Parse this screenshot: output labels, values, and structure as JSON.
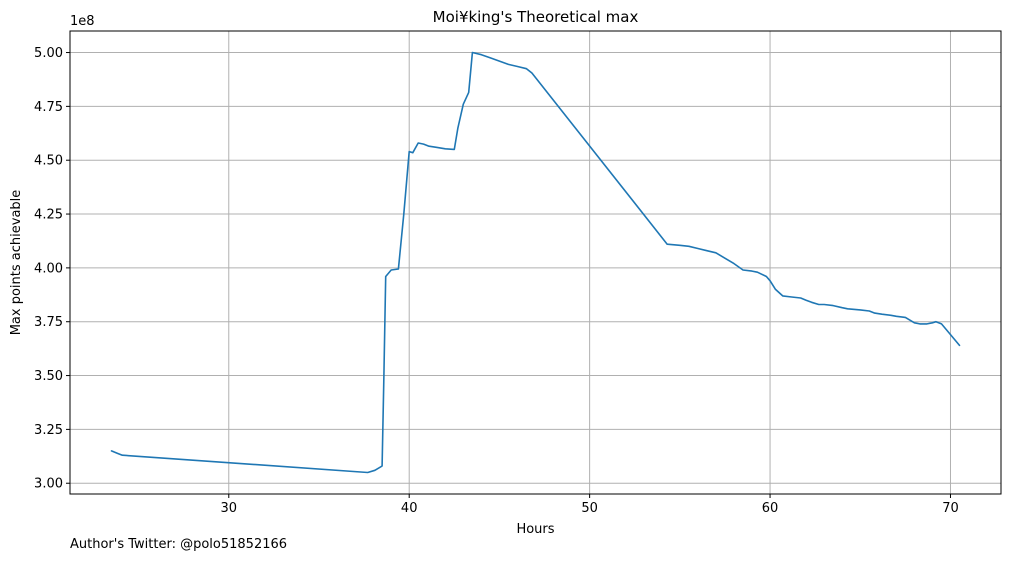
{
  "caption": "Author's Twitter: @polo51852166",
  "chart_data": {
    "type": "line",
    "title": "Moi¥king's Theoretical max",
    "xlabel": "Hours",
    "ylabel": "Max points achievable",
    "y_offset_label": "1e8",
    "xlim": [
      21.2,
      72.8
    ],
    "ylim": [
      2.95,
      5.1
    ],
    "xticks": [
      30,
      40,
      50,
      60,
      70
    ],
    "xtick_labels": [
      "30",
      "40",
      "50",
      "60",
      "70"
    ],
    "yticks": [
      3.0,
      3.25,
      3.5,
      3.75,
      4.0,
      4.25,
      4.5,
      4.75,
      5.0
    ],
    "ytick_labels": [
      "3.00",
      "3.25",
      "3.50",
      "3.75",
      "4.00",
      "4.25",
      "4.50",
      "4.75",
      "5.00"
    ],
    "grid": true,
    "line_color": "#1f77b4",
    "series": [
      {
        "x": [
          23.5,
          23.8,
          24.1,
          37.7,
          38.1,
          38.5,
          38.6,
          38.7,
          39.0,
          39.4,
          39.7,
          40.0,
          40.2,
          40.5,
          40.8,
          41.1,
          41.5,
          42.0,
          42.5,
          42.7,
          43.0,
          43.3,
          43.5,
          44.0,
          44.5,
          45.0,
          45.5,
          46.0,
          46.5,
          46.8,
          54.3,
          55.0,
          55.5,
          56.0,
          56.5,
          57.0,
          57.5,
          58.0,
          58.5,
          59.0,
          59.3,
          59.8,
          60.0,
          60.3,
          60.7,
          61.2,
          61.7,
          62.0,
          62.3,
          62.7,
          63.0,
          63.5,
          64.0,
          64.3,
          65.0,
          65.5,
          65.8,
          66.2,
          66.7,
          67.0,
          67.5,
          68.0,
          68.3,
          68.7,
          69.0,
          69.2,
          69.5,
          70.0,
          70.5
        ],
        "y": [
          3.15,
          3.14,
          3.13,
          3.05,
          3.06,
          3.08,
          3.5,
          3.96,
          3.99,
          3.995,
          4.25,
          4.54,
          4.535,
          4.58,
          4.575,
          4.565,
          4.56,
          4.553,
          4.55,
          4.65,
          4.76,
          4.815,
          5.0,
          4.99,
          4.975,
          4.96,
          4.945,
          4.935,
          4.925,
          4.905,
          4.11,
          4.105,
          4.1,
          4.09,
          4.08,
          4.07,
          4.045,
          4.02,
          3.99,
          3.985,
          3.98,
          3.96,
          3.94,
          3.9,
          3.87,
          3.865,
          3.86,
          3.85,
          3.84,
          3.83,
          3.83,
          3.825,
          3.815,
          3.81,
          3.805,
          3.8,
          3.79,
          3.785,
          3.78,
          3.775,
          3.77,
          3.745,
          3.74,
          3.74,
          3.745,
          3.75,
          3.74,
          3.69,
          3.64
        ]
      }
    ]
  }
}
